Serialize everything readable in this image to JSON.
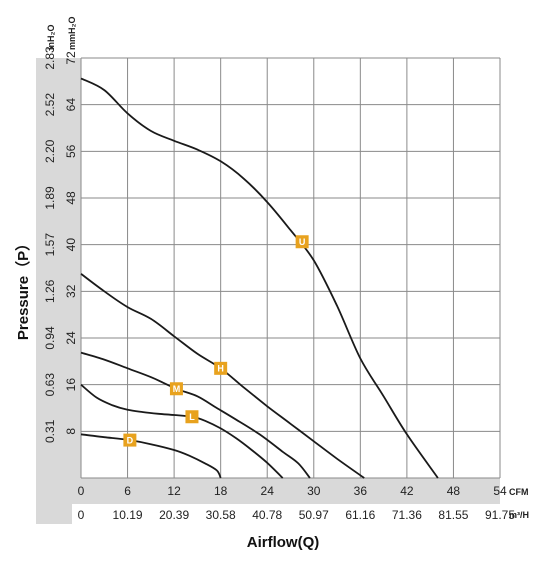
{
  "chart_data": {
    "type": "line",
    "xlabel": "Airflow(Q)",
    "ylabel": "Pressure（P）",
    "x_unit_primary": "CFM",
    "x_unit_secondary": "m³/H",
    "y_unit_primary": "mmH₂O",
    "y_unit_secondary": "inH₂O",
    "xlim": [
      0,
      54
    ],
    "ylim": [
      0,
      72
    ],
    "x_ticks": [
      0,
      6,
      12,
      18,
      24,
      30,
      36,
      42,
      48,
      54
    ],
    "x_ticks_secondary": [
      "0",
      "10.19",
      "20.39",
      "30.58",
      "40.78",
      "50.97",
      "61.16",
      "71.36",
      "81.55",
      "91.75"
    ],
    "y_ticks": [
      8,
      16,
      24,
      32,
      40,
      48,
      56,
      64,
      72
    ],
    "y_ticks_secondary": [
      "0.31",
      "0.63",
      "0.94",
      "1.26",
      "1.57",
      "1.89",
      "2.20",
      "2.52",
      "2.83"
    ],
    "grid": true,
    "label_color": "#e8a21e",
    "series": [
      {
        "name": "U",
        "label_at": [
          28.5,
          40.5
        ],
        "points": [
          [
            0,
            68.5
          ],
          [
            3,
            66.5
          ],
          [
            6,
            62.5
          ],
          [
            9,
            59.5
          ],
          [
            12,
            57.8
          ],
          [
            15,
            56.3
          ],
          [
            18,
            54.3
          ],
          [
            21,
            51.3
          ],
          [
            24,
            47.3
          ],
          [
            27,
            42.5
          ],
          [
            30,
            37.3
          ],
          [
            33,
            29.5
          ],
          [
            36,
            20.5
          ],
          [
            39,
            14.0
          ],
          [
            42,
            7.5
          ],
          [
            46,
            0
          ]
        ]
      },
      {
        "name": "H",
        "label_at": [
          18,
          18.8
        ],
        "points": [
          [
            0,
            35.0
          ],
          [
            3,
            32.0
          ],
          [
            6,
            29.3
          ],
          [
            9,
            27.3
          ],
          [
            12,
            24.3
          ],
          [
            15,
            21.3
          ],
          [
            18,
            18.8
          ],
          [
            21,
            15.5
          ],
          [
            24,
            12.3
          ],
          [
            27,
            9.3
          ],
          [
            30,
            6.3
          ],
          [
            33,
            3.3
          ],
          [
            36.5,
            0
          ]
        ]
      },
      {
        "name": "M",
        "label_at": [
          12.3,
          15.3
        ],
        "points": [
          [
            0,
            21.5
          ],
          [
            3,
            20.3
          ],
          [
            6,
            18.8
          ],
          [
            9,
            17.3
          ],
          [
            12.3,
            15.3
          ],
          [
            15,
            14.0
          ],
          [
            17.5,
            12.0
          ],
          [
            20,
            10.0
          ],
          [
            23,
            7.5
          ],
          [
            26,
            4.5
          ],
          [
            28,
            2.5
          ],
          [
            29.5,
            0
          ]
        ]
      },
      {
        "name": "L",
        "label_at": [
          14.3,
          10.5
        ],
        "points": [
          [
            0,
            16.0
          ],
          [
            2,
            13.8
          ],
          [
            4,
            12.5
          ],
          [
            6,
            11.7
          ],
          [
            8,
            11.3
          ],
          [
            10,
            11.0
          ],
          [
            12,
            10.8
          ],
          [
            14.3,
            10.5
          ],
          [
            16,
            9.8
          ],
          [
            18,
            8.5
          ],
          [
            20,
            6.8
          ],
          [
            22,
            4.8
          ],
          [
            24,
            2.6
          ],
          [
            26,
            0
          ]
        ]
      },
      {
        "name": "D",
        "label_at": [
          6.3,
          6.5
        ],
        "points": [
          [
            0,
            7.5
          ],
          [
            3,
            7.0
          ],
          [
            6.3,
            6.5
          ],
          [
            9,
            5.8
          ],
          [
            12,
            4.8
          ],
          [
            14,
            3.8
          ],
          [
            16,
            2.5
          ],
          [
            17.5,
            1.3
          ],
          [
            18,
            0
          ]
        ]
      }
    ]
  }
}
